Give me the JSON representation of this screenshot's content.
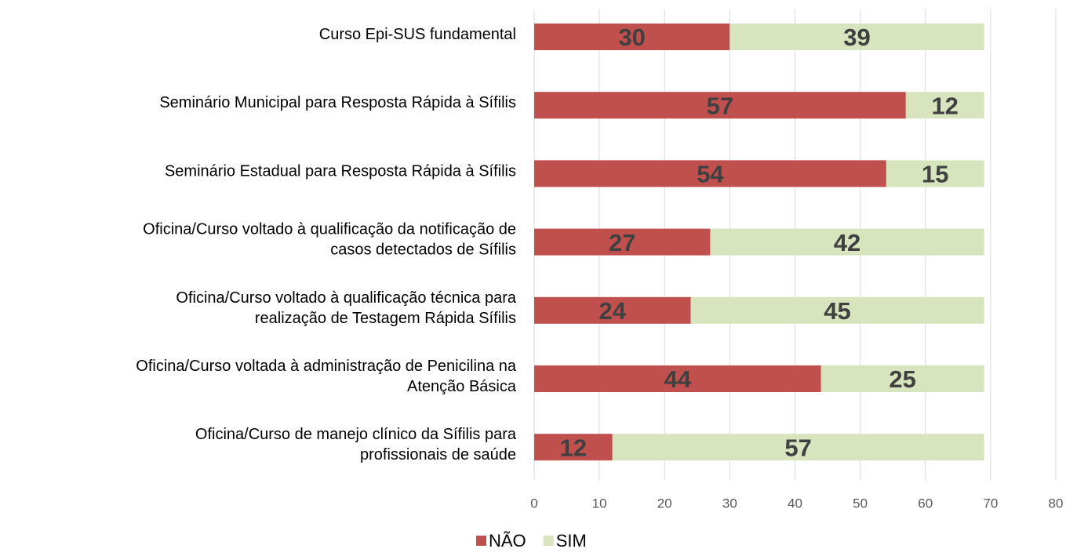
{
  "chart_data": {
    "type": "stacked_bar_horizontal",
    "categories": [
      "Curso Epi-SUS fundamental",
      "Seminário Municipal para Resposta Rápida à Sífilis",
      "Seminário Estadual para Resposta Rápida à Sífilis",
      "Oficina/Curso voltado à qualificação da notificação de\ncasos detectados de Sífilis",
      "Oficina/Curso voltado à qualificação técnica para\nrealização de Testagem Rápida Sífilis",
      "Oficina/Curso voltada à administração de Penicilina na\nAtenção Básica",
      "Oficina/Curso de manejo clínico da Sífilis para\nprofissionais de saúde"
    ],
    "series": [
      {
        "name": "NÃO",
        "color": "#c0504d",
        "values": [
          30,
          57,
          54,
          27,
          24,
          44,
          12
        ]
      },
      {
        "name": "SIM",
        "color": "#d7e4bd",
        "values": [
          39,
          12,
          15,
          42,
          45,
          25,
          57
        ]
      }
    ],
    "xlim": [
      0,
      80
    ],
    "xticks": [
      0,
      10,
      20,
      30,
      40,
      50,
      60,
      70,
      80
    ],
    "grid": true,
    "legend": "bottom"
  }
}
